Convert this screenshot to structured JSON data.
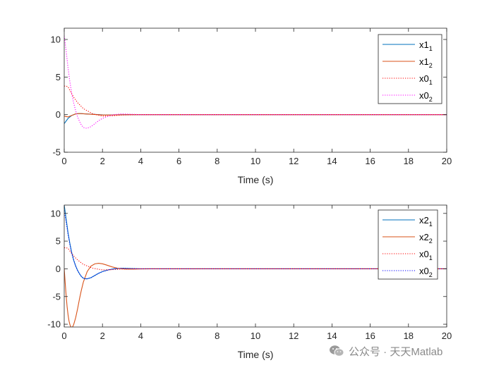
{
  "chart_data": [
    {
      "type": "line",
      "xlabel": "Time (s)",
      "ylabel": "",
      "xlim": [
        0,
        20
      ],
      "ylim": [
        -5,
        11.5
      ],
      "xticks": [
        "0",
        "2",
        "4",
        "6",
        "8",
        "10",
        "12",
        "14",
        "16",
        "18",
        "20"
      ],
      "yticks": [
        "-5",
        "0",
        "5",
        "10"
      ],
      "ytick_values": [
        -5,
        0,
        5,
        10
      ],
      "legend_position": "top-right",
      "series": [
        {
          "name": "x1",
          "sub": "1",
          "color": "#0072BD",
          "style": "solid",
          "x": [
            0,
            0.2,
            0.4,
            0.6,
            0.8,
            1.0,
            1.5,
            2.0,
            2.5,
            3.0,
            3.5,
            4.0,
            20
          ],
          "y": [
            -1.2,
            -0.5,
            -0.1,
            0.1,
            0.15,
            0.12,
            0.05,
            -0.02,
            -0.03,
            -0.01,
            0,
            0,
            0
          ]
        },
        {
          "name": "x1",
          "sub": "2",
          "color": "#D95319",
          "style": "solid",
          "x": [
            0,
            0.2,
            0.4,
            0.6,
            0.8,
            1.0,
            1.2,
            1.5,
            2.0,
            2.5,
            3.0,
            3.5,
            20
          ],
          "y": [
            -0.2,
            -0.3,
            -0.1,
            0.1,
            0.15,
            0.12,
            0.08,
            0.03,
            -0.05,
            -0.05,
            -0.02,
            0,
            0
          ]
        },
        {
          "name": "x0",
          "sub": "1",
          "color": "#FF0000",
          "style": "dotted",
          "x": [
            0,
            0.1,
            0.2,
            0.3,
            0.5,
            0.7,
            1.0,
            1.5,
            2.0,
            2.5,
            3.0,
            4.0,
            20
          ],
          "y": [
            3.8,
            3.8,
            3.7,
            3.2,
            2.3,
            1.6,
            0.8,
            0.1,
            -0.2,
            -0.15,
            -0.05,
            0,
            0
          ]
        },
        {
          "name": "x0",
          "sub": "2",
          "color": "#FF00FF",
          "style": "dotted",
          "x": [
            0,
            0.1,
            0.2,
            0.3,
            0.4,
            0.5,
            0.6,
            0.7,
            0.8,
            0.9,
            1.0,
            1.1,
            1.2,
            1.4,
            1.6,
            1.8,
            2.0,
            2.3,
            2.6,
            3.0,
            3.5,
            4.0,
            20
          ],
          "y": [
            10.5,
            8.5,
            6.2,
            4.3,
            2.7,
            1.5,
            0.5,
            -0.3,
            -0.9,
            -1.4,
            -1.7,
            -1.8,
            -1.8,
            -1.6,
            -1.2,
            -0.8,
            -0.5,
            -0.2,
            0,
            0.1,
            0.05,
            0,
            0
          ]
        }
      ]
    },
    {
      "type": "line",
      "xlabel": "Time (s)",
      "ylabel": "",
      "xlim": [
        0,
        20
      ],
      "ylim": [
        -10.5,
        11.5
      ],
      "xticks": [
        "0",
        "2",
        "4",
        "6",
        "8",
        "10",
        "12",
        "14",
        "16",
        "18",
        "20"
      ],
      "yticks": [
        "-10",
        "-5",
        "0",
        "5",
        "10"
      ],
      "ytick_values": [
        -10,
        -5,
        0,
        5,
        10
      ],
      "legend_position": "top-right",
      "series": [
        {
          "name": "x2",
          "sub": "1",
          "color": "#0072BD",
          "style": "solid",
          "x": [
            0,
            0.1,
            0.2,
            0.3,
            0.4,
            0.5,
            0.6,
            0.7,
            0.8,
            0.9,
            1.0,
            1.1,
            1.2,
            1.4,
            1.6,
            1.8,
            2.0,
            2.3,
            2.6,
            3.0,
            3.5,
            4.0,
            20
          ],
          "y": [
            11.5,
            9.0,
            6.5,
            4.5,
            2.8,
            1.5,
            0.5,
            -0.3,
            -0.9,
            -1.4,
            -1.7,
            -1.8,
            -1.8,
            -1.6,
            -1.2,
            -0.8,
            -0.5,
            -0.2,
            0,
            0.1,
            0.05,
            0,
            0
          ]
        },
        {
          "name": "x2",
          "sub": "2",
          "color": "#D95319",
          "style": "solid",
          "x": [
            0,
            0.05,
            0.1,
            0.15,
            0.2,
            0.25,
            0.3,
            0.35,
            0.4,
            0.45,
            0.5,
            0.6,
            0.7,
            0.8,
            0.9,
            1.0,
            1.2,
            1.4,
            1.6,
            1.8,
            2.0,
            2.2,
            2.5,
            2.8,
            3.2,
            3.6,
            4.0,
            4.5,
            20
          ],
          "y": [
            0,
            -2.5,
            -4.8,
            -6.8,
            -8.3,
            -9.4,
            -10.1,
            -10.5,
            -10.6,
            -10.4,
            -10.0,
            -8.8,
            -7.2,
            -5.4,
            -3.8,
            -2.4,
            -0.5,
            0.5,
            0.9,
            1.0,
            0.9,
            0.7,
            0.35,
            0.1,
            -0.05,
            -0.05,
            -0.02,
            0,
            0
          ]
        },
        {
          "name": "x0",
          "sub": "1",
          "color": "#FF0000",
          "style": "dotted",
          "x": [
            0,
            0.1,
            0.2,
            0.3,
            0.5,
            0.7,
            1.0,
            1.5,
            2.0,
            2.5,
            3.0,
            4.0,
            20
          ],
          "y": [
            3.8,
            3.8,
            3.7,
            3.2,
            2.3,
            1.6,
            0.8,
            0.1,
            -0.2,
            -0.15,
            -0.05,
            0,
            0
          ]
        },
        {
          "name": "x0",
          "sub": "2",
          "color": "#0000FF",
          "style": "dotted",
          "x": [
            0,
            0.1,
            0.2,
            0.3,
            0.4,
            0.5,
            0.6,
            0.7,
            0.8,
            0.9,
            1.0,
            1.1,
            1.2,
            1.4,
            1.6,
            1.8,
            2.0,
            2.3,
            2.6,
            3.0,
            3.5,
            4.0,
            20
          ],
          "y": [
            10.5,
            8.5,
            6.2,
            4.3,
            2.7,
            1.5,
            0.5,
            -0.3,
            -0.9,
            -1.4,
            -1.7,
            -1.8,
            -1.8,
            -1.6,
            -1.2,
            -0.8,
            -0.5,
            -0.2,
            0,
            0.1,
            0.05,
            0,
            0
          ]
        }
      ]
    }
  ],
  "watermark": {
    "icon": "wechat-icon",
    "text": "公众号 · 天天Matlab"
  }
}
